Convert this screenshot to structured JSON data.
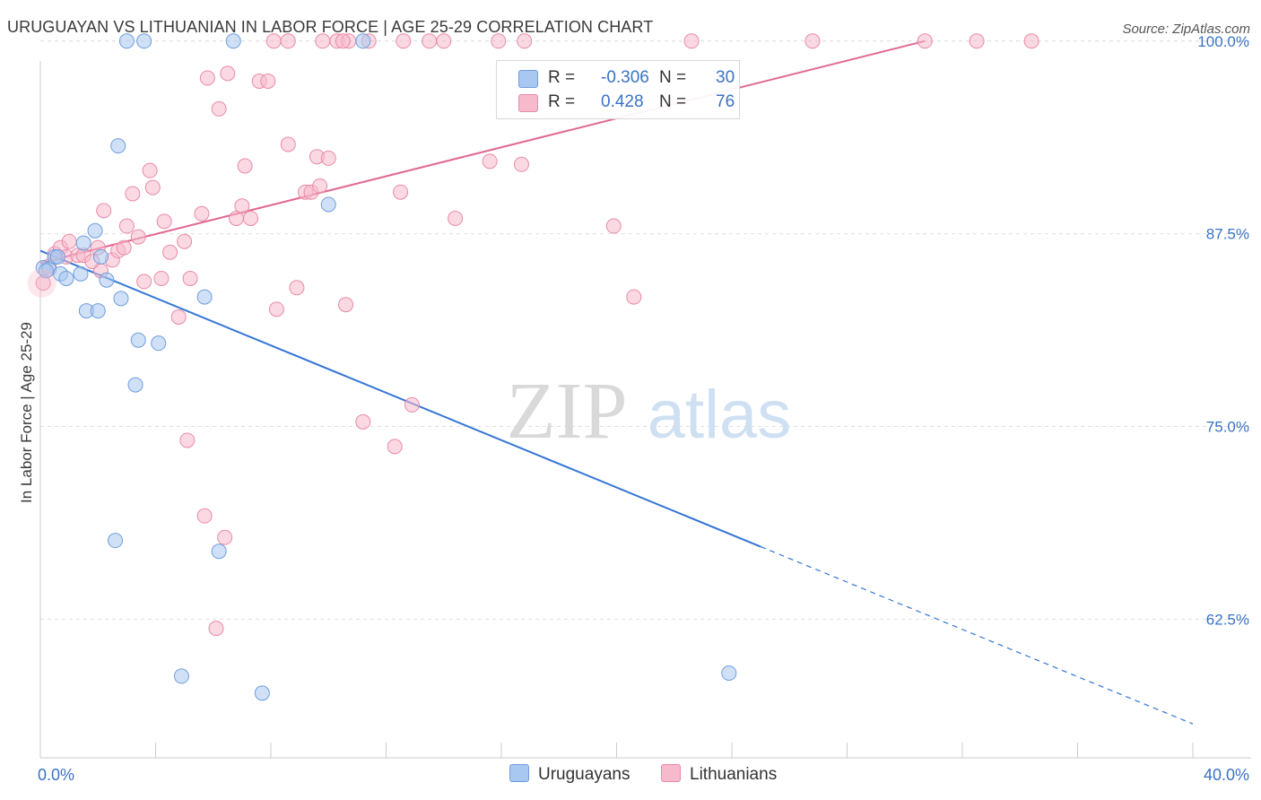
{
  "title": "URUGUAYAN VS LITHUANIAN IN LABOR FORCE | AGE 25-29 CORRELATION CHART",
  "source": "Source: ZipAtlas.com",
  "watermark": {
    "zip": "ZIP",
    "atlas": "atlas"
  },
  "legend": {
    "rows": [
      {
        "r_label": "R =",
        "r_value": "-0.306",
        "n_label": "N =",
        "n_value": "30",
        "color": "#a9c8f1"
      },
      {
        "r_label": "R =",
        "r_value": "0.428",
        "n_label": "N =",
        "n_value": "76",
        "color": "#f7b9cc"
      }
    ]
  },
  "bottom_legend": [
    {
      "label": "Uruguayans",
      "color": "#a9c8f1"
    },
    {
      "label": "Lithuanians",
      "color": "#f7b9cc"
    }
  ],
  "colors": {
    "blue_fill": "#a9c8f1",
    "blue_stroke": "#6f9edb",
    "blue_line": "#3475d6",
    "pink_fill": "#f7b9cc",
    "pink_stroke": "#e88aa8",
    "pink_line": "#e0698f",
    "grid": "#e0e0e0",
    "tick_label": "#3a72c4",
    "axis": "#cccccc"
  },
  "chart_data": {
    "type": "scatter",
    "title": "URUGUAYAN VS LITHUANIAN IN LABOR FORCE | AGE 25-29 CORRELATION CHART",
    "xlabel": "",
    "ylabel": "In Labor Force | Age 25-29",
    "xlim": [
      0,
      40
    ],
    "ylim": [
      53.5,
      101.5
    ],
    "x_tick_labels": [
      "0.0%",
      "40.0%"
    ],
    "y_ticks": [
      62.5,
      75.0,
      87.5,
      100.0
    ],
    "y_tick_labels": [
      "62.5%",
      "75.0%",
      "87.5%",
      "100.0%"
    ],
    "grid": true,
    "legend_position": "top-center",
    "series": [
      {
        "name": "Uruguayans",
        "color": "#a9c8f1",
        "points": [
          [
            0.1,
            85.3
          ],
          [
            0.3,
            85.2
          ],
          [
            0.5,
            86.0
          ],
          [
            0.7,
            84.9
          ],
          [
            0.9,
            84.6
          ],
          [
            1.4,
            84.9
          ],
          [
            1.5,
            86.9
          ],
          [
            1.6,
            82.5
          ],
          [
            1.9,
            87.7
          ],
          [
            2.0,
            82.5
          ],
          [
            2.1,
            86.0
          ],
          [
            2.3,
            84.5
          ],
          [
            2.7,
            93.2
          ],
          [
            2.8,
            83.3
          ],
          [
            3.0,
            100.0
          ],
          [
            3.4,
            80.6
          ],
          [
            3.6,
            100.0
          ],
          [
            4.1,
            80.4
          ],
          [
            5.7,
            83.4
          ],
          [
            6.7,
            100.0
          ],
          [
            3.3,
            77.7
          ],
          [
            10.0,
            89.4
          ],
          [
            11.2,
            100.0
          ],
          [
            2.6,
            67.6
          ],
          [
            6.2,
            66.9
          ],
          [
            4.9,
            58.8
          ],
          [
            7.7,
            57.7
          ],
          [
            23.9,
            59.0
          ],
          [
            0.2,
            85.1
          ],
          [
            0.6,
            86.0
          ]
        ],
        "trend": {
          "x": [
            0,
            25
          ],
          "y": [
            86.4,
            67.2
          ]
        },
        "trend_dashed": {
          "x": [
            25,
            40
          ],
          "y": [
            67.2,
            55.7
          ]
        }
      },
      {
        "name": "Lithuanians",
        "color": "#f7b9cc",
        "points": [
          [
            0.1,
            84.3
          ],
          [
            0.3,
            85.4
          ],
          [
            0.5,
            86.2
          ],
          [
            0.7,
            86.6
          ],
          [
            0.9,
            86.0
          ],
          [
            1.0,
            87.0
          ],
          [
            1.3,
            86.1
          ],
          [
            1.5,
            86.1
          ],
          [
            1.8,
            85.7
          ],
          [
            2.0,
            86.6
          ],
          [
            2.1,
            85.1
          ],
          [
            2.2,
            89.0
          ],
          [
            2.5,
            85.8
          ],
          [
            2.7,
            86.4
          ],
          [
            2.9,
            86.6
          ],
          [
            3.0,
            88.0
          ],
          [
            3.2,
            90.1
          ],
          [
            3.4,
            87.3
          ],
          [
            3.6,
            84.4
          ],
          [
            3.8,
            91.6
          ],
          [
            3.9,
            90.5
          ],
          [
            4.2,
            84.6
          ],
          [
            4.3,
            88.3
          ],
          [
            4.5,
            86.3
          ],
          [
            4.8,
            82.1
          ],
          [
            5.0,
            87.0
          ],
          [
            5.2,
            84.6
          ],
          [
            5.6,
            88.8
          ],
          [
            5.8,
            97.6
          ],
          [
            6.2,
            95.6
          ],
          [
            6.5,
            97.9
          ],
          [
            6.8,
            88.5
          ],
          [
            7.0,
            89.3
          ],
          [
            7.1,
            91.9
          ],
          [
            7.3,
            88.5
          ],
          [
            7.6,
            97.4
          ],
          [
            7.9,
            97.4
          ],
          [
            8.2,
            82.6
          ],
          [
            8.6,
            93.3
          ],
          [
            8.9,
            84.0
          ],
          [
            9.2,
            90.2
          ],
          [
            9.4,
            90.2
          ],
          [
            9.6,
            92.5
          ],
          [
            9.7,
            90.6
          ],
          [
            10.0,
            92.4
          ],
          [
            10.6,
            82.9
          ],
          [
            11.2,
            75.3
          ],
          [
            12.3,
            73.7
          ],
          [
            12.5,
            90.2
          ],
          [
            12.9,
            76.4
          ],
          [
            5.1,
            74.1
          ],
          [
            5.7,
            69.2
          ],
          [
            6.4,
            67.8
          ],
          [
            6.1,
            61.9
          ],
          [
            14.4,
            88.5
          ],
          [
            15.6,
            92.2
          ],
          [
            16.7,
            92.0
          ],
          [
            19.9,
            88.0
          ],
          [
            20.6,
            83.4
          ],
          [
            8.1,
            100.0
          ],
          [
            8.6,
            100.0
          ],
          [
            9.8,
            100.0
          ],
          [
            10.3,
            100.0
          ],
          [
            10.7,
            100.0
          ],
          [
            11.4,
            100.0
          ],
          [
            12.6,
            100.0
          ],
          [
            13.5,
            100.0
          ],
          [
            14.0,
            100.0
          ],
          [
            15.9,
            100.0
          ],
          [
            16.8,
            100.0
          ],
          [
            22.6,
            100.0
          ],
          [
            26.8,
            100.0
          ],
          [
            30.7,
            100.0
          ],
          [
            32.5,
            100.0
          ],
          [
            34.4,
            100.0
          ],
          [
            10.5,
            100.0
          ]
        ],
        "trend": {
          "x": [
            0,
            30.7
          ],
          "y": [
            85.6,
            100.0
          ]
        }
      }
    ]
  }
}
